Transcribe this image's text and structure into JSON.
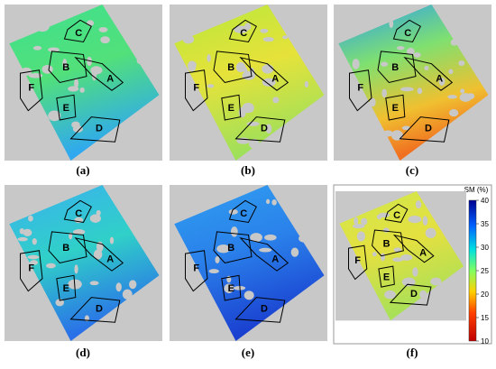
{
  "panels": [
    "(a)",
    "(b)",
    "(c)",
    "(d)",
    "(e)",
    "(f)"
  ],
  "regions": [
    "A",
    "B",
    "C",
    "D",
    "E",
    "F"
  ],
  "colorbar": {
    "title": "SM (%)",
    "range": [
      10,
      40
    ],
    "ticks": [
      10,
      15,
      20,
      25,
      30,
      35,
      40
    ]
  }
}
